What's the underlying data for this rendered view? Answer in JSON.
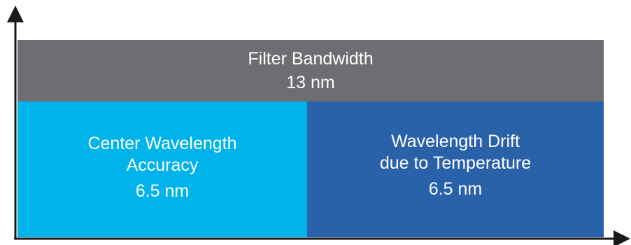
{
  "filter_bandwidth": {
    "label": "Filter Bandwidth",
    "value": "13 nm"
  },
  "center_wavelength_accuracy": {
    "label_line1": "Center Wavelength",
    "label_line2": "Accuracy",
    "value": "6.5 nm"
  },
  "wavelength_drift": {
    "label_line1": "Wavelength Drift",
    "label_line2": "due to Temperature",
    "value": "6.5 nm"
  },
  "colors": {
    "bandwidth_bg": "#6d6e71",
    "accuracy_bg": "#00b3ea",
    "drift_bg": "#2a62a9",
    "axis": "#1a1a1a"
  },
  "icons": {
    "y_axis": "arrow-up-icon",
    "x_axis": "arrow-right-icon"
  }
}
